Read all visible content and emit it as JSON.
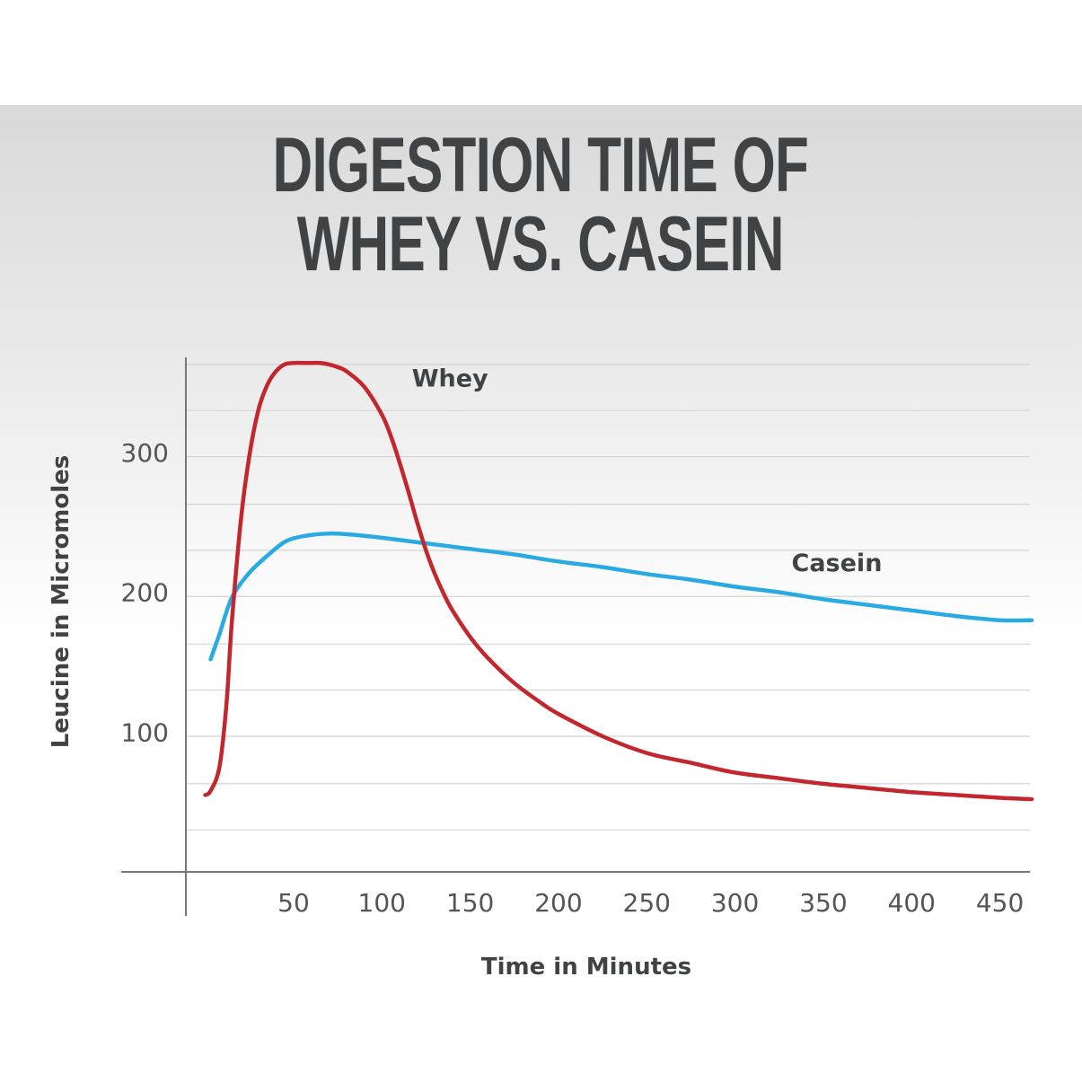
{
  "chart_data": {
    "type": "line",
    "title_lines": [
      "DIGESTION TIME OF",
      "WHEY VS. CASEIN"
    ],
    "xlabel": "Time in Minutes",
    "ylabel": "Leucine in Micromoles",
    "xlim": [
      -11,
      467
    ],
    "ylim": [
      0,
      368
    ],
    "x_ticks": [
      50,
      100,
      150,
      200,
      250,
      300,
      350,
      400,
      450
    ],
    "y_ticks": [
      100,
      200,
      300
    ],
    "y_gridlines": [
      30,
      63,
      97,
      130,
      163,
      197,
      230,
      263,
      297,
      330,
      363
    ],
    "series": [
      {
        "name": "Whey",
        "color": "#c1272d",
        "x": [
          0,
          3,
          8,
          12,
          15,
          20,
          25,
          30,
          35,
          40,
          45,
          50,
          55,
          60,
          65,
          70,
          75,
          80,
          90,
          100,
          105,
          110,
          115,
          120,
          125,
          130,
          135,
          140,
          150,
          160,
          175,
          190,
          200,
          225,
          250,
          275,
          300,
          325,
          350,
          375,
          400,
          425,
          450,
          468
        ],
        "values": [
          55,
          58,
          75,
          120,
          178,
          250,
          298,
          330,
          348,
          358,
          363,
          364,
          364,
          364,
          364,
          363,
          361,
          358,
          347,
          327,
          312,
          293,
          272,
          250,
          230,
          213,
          199,
          187,
          168,
          153,
          135,
          121,
          113,
          97,
          85,
          78,
          71,
          67,
          63,
          60,
          57,
          55,
          53,
          52
        ]
      },
      {
        "name": "Casein",
        "color": "#29abe2",
        "x": [
          3,
          8,
          15,
          25,
          35,
          45,
          55,
          70,
          85,
          100,
          125,
          150,
          175,
          200,
          225,
          250,
          275,
          300,
          325,
          350,
          375,
          400,
          425,
          450,
          468
        ],
        "values": [
          152,
          170,
          196,
          214,
          226,
          236,
          240,
          242,
          241,
          239,
          235,
          231,
          227,
          222,
          218,
          213,
          209,
          204,
          200,
          195,
          191,
          187,
          183,
          180,
          180
        ]
      }
    ],
    "annotations": [
      {
        "text": "Whey",
        "x": 117,
        "y": 347
      },
      {
        "text": "Casein",
        "x": 332,
        "y": 215
      }
    ]
  }
}
